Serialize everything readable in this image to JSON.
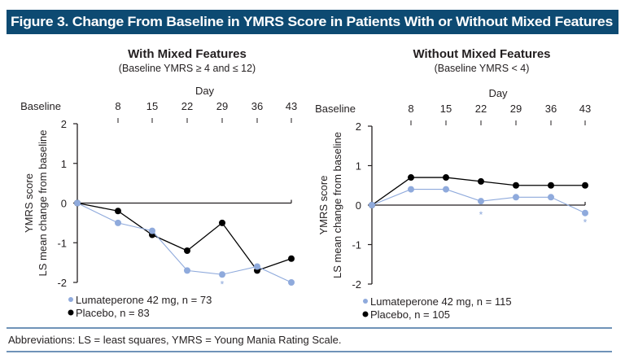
{
  "figure": {
    "title": "Figure 3. Change From Baseline in YMRS Score in Patients With or Without Mixed Features",
    "title_bg_color": "#0d4a72",
    "footnote": "Abbreviations: LS = least squares, YMRS = Young Mania Rating Scale."
  },
  "colors": {
    "lumateperone": "#8faadc",
    "placebo": "#000000",
    "rule": "#6f93b8"
  },
  "chart_data": [
    {
      "type": "line",
      "title": "With Mixed Features",
      "subtitle": "(Baseline YMRS ≥ 4 and ≤ 12)",
      "xlabel": "Day",
      "ylabel_line1": "YMRS score",
      "ylabel_line2": "LS mean change from baseline",
      "categories": [
        "Baseline",
        "8",
        "15",
        "22",
        "29",
        "36",
        "43"
      ],
      "ylim": [
        -2,
        2
      ],
      "yticks": [
        "2",
        "1",
        "0",
        "-1",
        "-2"
      ],
      "grid": false,
      "legend_position": "bottom-left",
      "series": [
        {
          "name": "Lumateperone 42 mg, n = 73",
          "key": "lumateperone",
          "values": [
            0,
            -0.5,
            -0.7,
            -1.7,
            -1.8,
            -1.6,
            -2.0
          ]
        },
        {
          "name": "Placebo, n = 83",
          "key": "placebo",
          "values": [
            0,
            -0.2,
            -0.8,
            -1.2,
            -0.5,
            -1.7,
            -1.4
          ]
        }
      ],
      "annotations": [
        {
          "text": "*",
          "category": "29",
          "series": "lumateperone"
        }
      ]
    },
    {
      "type": "line",
      "title": "Without Mixed Features",
      "subtitle": "(Baseline YMRS < 4)",
      "xlabel": "Day",
      "ylabel_line1": "YMRS score",
      "ylabel_line2": "LS mean change from baseline",
      "categories": [
        "Baseline",
        "8",
        "15",
        "22",
        "29",
        "36",
        "43"
      ],
      "ylim": [
        -2,
        2
      ],
      "yticks": [
        "2",
        "1",
        "0",
        "-1",
        "-2"
      ],
      "grid": false,
      "legend_position": "bottom-left",
      "series": [
        {
          "name": "Lumateperone 42 mg, n = 115",
          "key": "lumateperone",
          "values": [
            0,
            0.4,
            0.4,
            0.1,
            0.2,
            0.2,
            -0.2
          ]
        },
        {
          "name": "Placebo, n = 105",
          "key": "placebo",
          "values": [
            0,
            0.7,
            0.7,
            0.6,
            0.5,
            0.5,
            0.5
          ]
        }
      ],
      "annotations": [
        {
          "text": "*",
          "category": "22",
          "series": "lumateperone"
        },
        {
          "text": "*",
          "category": "43",
          "series": "lumateperone"
        }
      ]
    }
  ]
}
